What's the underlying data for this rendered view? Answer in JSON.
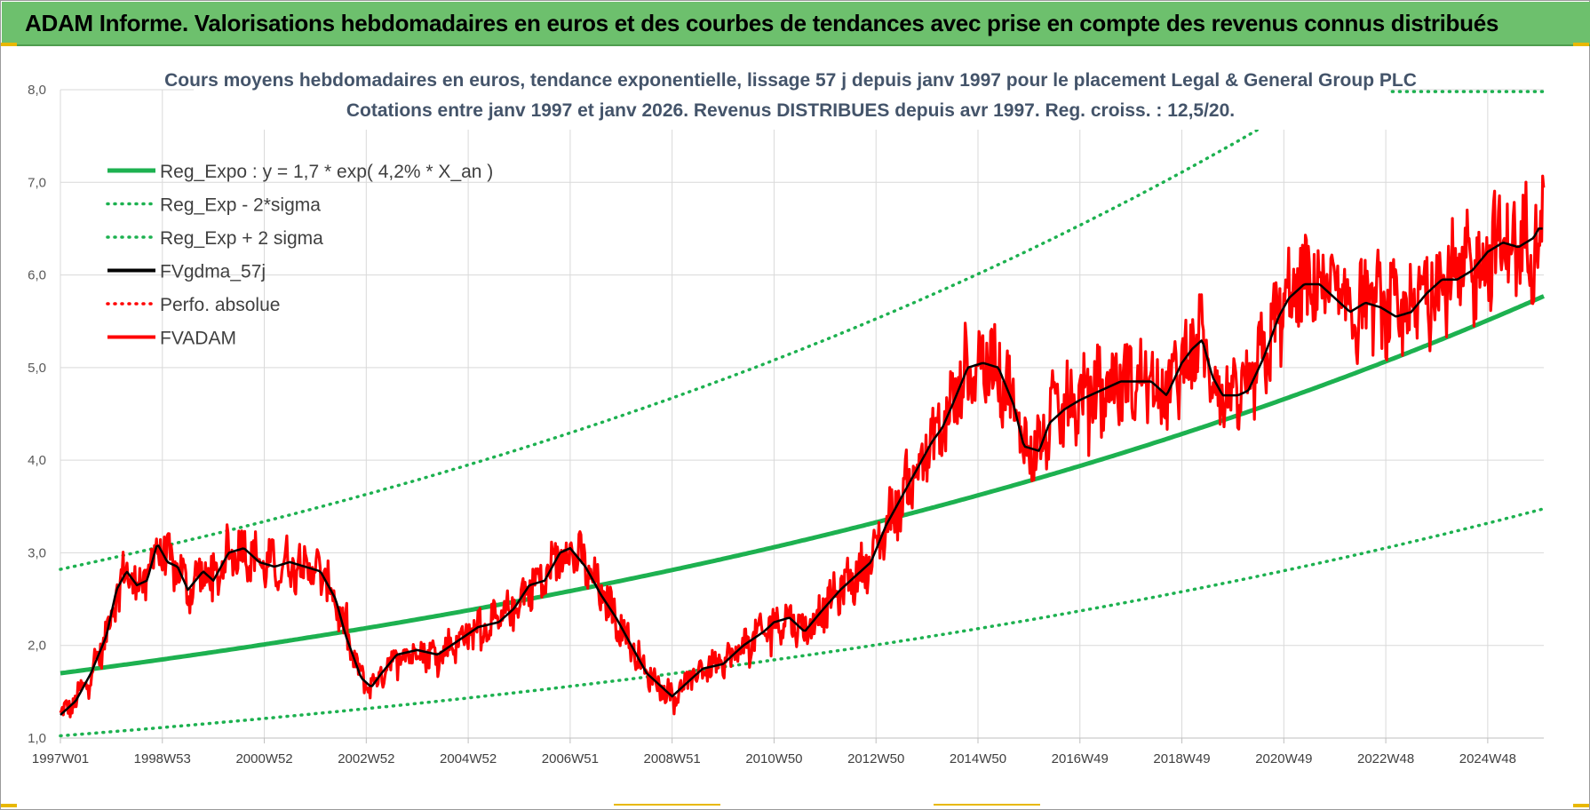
{
  "banner": {
    "title": "ADAM Informe. Valorisations hebdomadaires en euros et des courbes de tendances avec prise en compte des revenus connus distribués"
  },
  "colors": {
    "regression": "#1db150",
    "fvgdma": "#000000",
    "fvadam": "#ff0000",
    "banner": "#6dc06d",
    "grid": "#d9d9d9"
  },
  "chart_data": {
    "type": "line",
    "title_lines": [
      "Cours moyens hebdomadaires en euros, tendance exponentielle, lissage 57 j depuis janv 1997 pour le placement Legal & General Group PLC",
      "Cotations entre janv 1997 et janv 2026. Revenus DISTRIBUES depuis avr 1997.  Reg. croiss. : 12,5/20."
    ],
    "y_ticks": [
      "1,0",
      "2,0",
      "3,0",
      "4,0",
      "5,0",
      "6,0",
      "7,0",
      "8,0"
    ],
    "ylim": [
      1.0,
      8.0
    ],
    "x_ticks": [
      "1997W01",
      "1998W53",
      "2000W52",
      "2002W52",
      "2004W52",
      "2006W51",
      "2008W51",
      "2010W50",
      "2012W50",
      "2014W50",
      "2016W49",
      "2018W49",
      "2020W49",
      "2022W48",
      "2024W48"
    ],
    "xlim": [
      1997.0,
      2026.1
    ],
    "grid": "horizontal and vertical",
    "legend_position": "top-left",
    "regression": {
      "a": 1.7,
      "rate": 0.042,
      "x0": 1997.0,
      "sigma_factor": 1.66
    },
    "series": [
      {
        "name": "Reg_Expo : y = 1,7 * exp( 4,2% *  X_an )",
        "style": "solid-thick",
        "color": "#1db150",
        "kind": "reg"
      },
      {
        "name": "Reg_Exp - 2*sigma",
        "style": "dotted",
        "color": "#1db150",
        "kind": "reg_low"
      },
      {
        "name": "Reg_Exp + 2 sigma",
        "style": "dotted",
        "color": "#1db150",
        "kind": "reg_high"
      },
      {
        "name": "FVgdma_57j",
        "style": "solid",
        "color": "#000000",
        "kind": "smooth"
      },
      {
        "name": "Perfo. absolue",
        "style": "dotted",
        "color": "#ff0000",
        "kind": "none"
      },
      {
        "name": "FVADAM",
        "style": "solid",
        "color": "#ff0000",
        "kind": "price"
      }
    ],
    "price_keypoints": {
      "x": [
        1997.0,
        1997.3,
        1997.6,
        1997.9,
        1998.1,
        1998.3,
        1998.5,
        1998.7,
        1998.9,
        1999.1,
        1999.3,
        1999.5,
        1999.8,
        2000.0,
        2000.3,
        2000.6,
        2000.9,
        2001.2,
        2001.5,
        2001.8,
        2002.1,
        2002.4,
        2002.6,
        2002.9,
        2003.1,
        2003.3,
        2003.6,
        2004.0,
        2004.4,
        2004.8,
        2005.2,
        2005.6,
        2005.9,
        2006.2,
        2006.5,
        2006.8,
        2007.0,
        2007.3,
        2007.6,
        2007.9,
        2008.2,
        2008.5,
        2008.8,
        2009.0,
        2009.3,
        2009.6,
        2010.0,
        2010.4,
        2010.8,
        2011.0,
        2011.3,
        2011.6,
        2011.9,
        2012.3,
        2012.6,
        2012.9,
        2013.2,
        2013.6,
        2013.9,
        2014.1,
        2014.3,
        2014.5,
        2014.8,
        2015.1,
        2015.4,
        2015.7,
        2015.9,
        2016.2,
        2016.4,
        2016.7,
        2017.0,
        2017.4,
        2017.8,
        2018.1,
        2018.4,
        2018.7,
        2019.0,
        2019.2,
        2019.4,
        2019.6,
        2019.8,
        2020.1,
        2020.3,
        2020.6,
        2020.9,
        2021.1,
        2021.4,
        2021.7,
        2022.0,
        2022.3,
        2022.6,
        2022.9,
        2023.2,
        2023.5,
        2023.8,
        2024.1,
        2024.4,
        2024.7,
        2025.0,
        2025.3,
        2025.6,
        2025.9,
        2026.0
      ],
      "y": [
        1.25,
        1.4,
        1.7,
        2.1,
        2.6,
        2.8,
        2.65,
        2.7,
        3.1,
        2.9,
        2.85,
        2.6,
        2.8,
        2.7,
        3.0,
        3.05,
        2.9,
        2.85,
        2.9,
        2.85,
        2.8,
        2.5,
        2.1,
        1.65,
        1.55,
        1.7,
        1.9,
        1.95,
        1.9,
        2.05,
        2.2,
        2.25,
        2.4,
        2.65,
        2.7,
        3.0,
        3.05,
        2.85,
        2.55,
        2.3,
        2.0,
        1.7,
        1.55,
        1.45,
        1.6,
        1.75,
        1.8,
        2.0,
        2.15,
        2.25,
        2.3,
        2.15,
        2.35,
        2.6,
        2.75,
        2.9,
        3.3,
        3.7,
        4.0,
        4.2,
        4.35,
        4.6,
        5.0,
        5.05,
        5.0,
        4.6,
        4.15,
        4.1,
        4.4,
        4.55,
        4.65,
        4.75,
        4.85,
        4.85,
        4.85,
        4.7,
        5.05,
        5.2,
        5.3,
        4.9,
        4.7,
        4.7,
        4.75,
        5.1,
        5.55,
        5.75,
        5.9,
        5.9,
        5.75,
        5.6,
        5.7,
        5.65,
        5.55,
        5.6,
        5.8,
        5.95,
        5.95,
        6.05,
        6.25,
        6.35,
        6.3,
        6.4,
        6.5
      ]
    }
  }
}
